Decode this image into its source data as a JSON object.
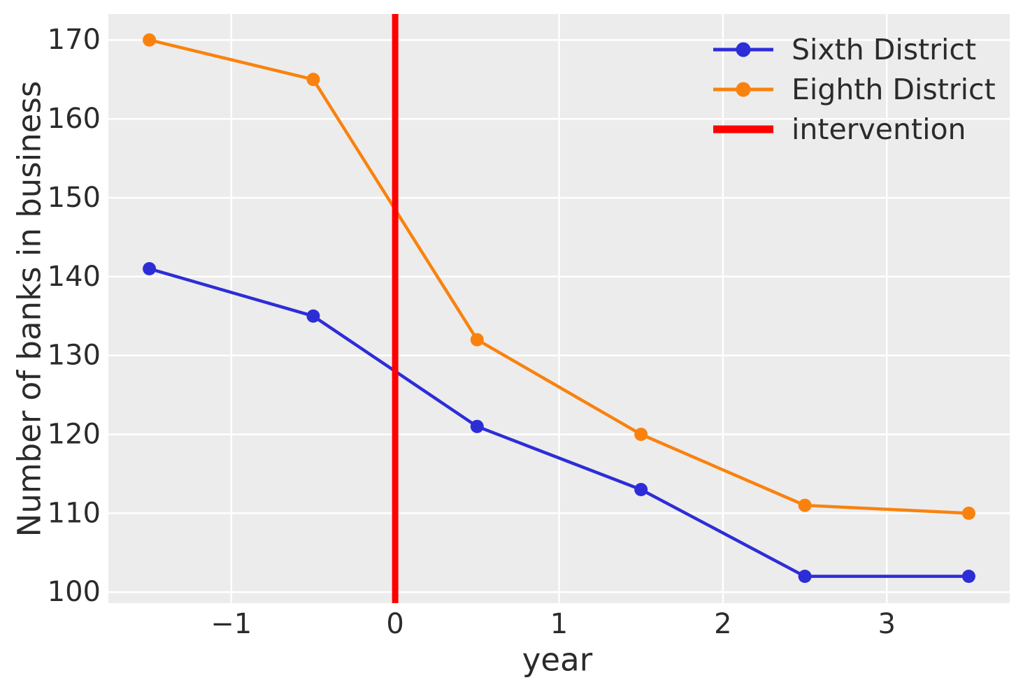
{
  "figure": {
    "background": "#ffffff",
    "plot_background": "#ececec",
    "grid_color": "#ffffff",
    "text_color": "#2b2b2b"
  },
  "chart_data": {
    "type": "line",
    "title": "",
    "xlabel": "year",
    "ylabel": "Number of banks in business",
    "x": [
      -1.5,
      -0.5,
      0.5,
      1.5,
      2.5,
      3.5
    ],
    "series": [
      {
        "name": "Sixth District",
        "color": "#2d2dd8",
        "marker": "circle",
        "values": [
          141,
          135,
          121,
          113,
          102,
          102
        ]
      },
      {
        "name": "Eighth District",
        "color": "#f9820e",
        "marker": "circle",
        "values": [
          170,
          165,
          132,
          120,
          111,
          110
        ]
      }
    ],
    "vline": {
      "name": "intervention",
      "x": 0,
      "color": "#ff0000"
    },
    "x_ticks": [
      -1,
      0,
      1,
      2,
      3
    ],
    "y_ticks": [
      100,
      110,
      120,
      130,
      140,
      150,
      160,
      170
    ],
    "xlim": [
      -1.75,
      3.75
    ],
    "ylim": [
      98.6,
      173.3
    ],
    "grid": true,
    "legend_position": "upper right",
    "legend_entries": [
      "Sixth District",
      "Eighth District",
      "intervention"
    ]
  }
}
